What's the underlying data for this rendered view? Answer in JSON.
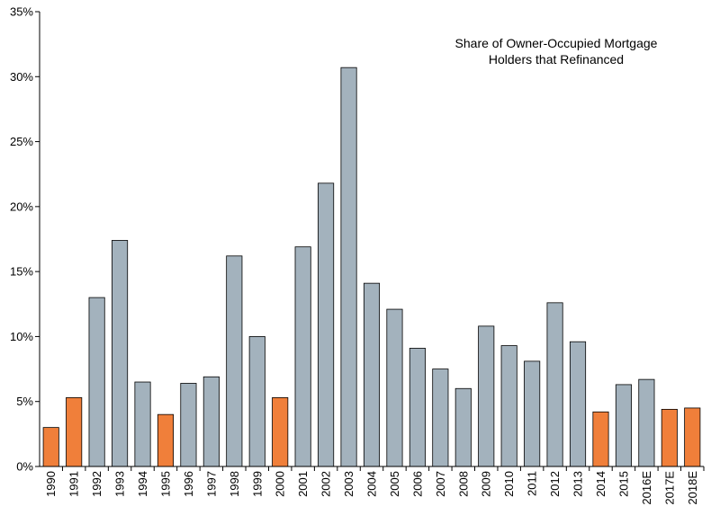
{
  "chart_data": {
    "type": "bar",
    "title_lines": [
      "Share of Owner-Occupied Mortgage",
      "Holders that Refinanced"
    ],
    "xlabel": "",
    "ylabel": "",
    "ylim": [
      0,
      35
    ],
    "y_ticks": [
      0,
      5,
      10,
      15,
      20,
      25,
      30,
      35
    ],
    "y_tick_labels": [
      "0%",
      "5%",
      "10%",
      "15%",
      "20%",
      "25%",
      "30%",
      "35%"
    ],
    "grid": false,
    "categories": [
      "1990",
      "1991",
      "1992",
      "1993",
      "1994",
      "1995",
      "1996",
      "1997",
      "1998",
      "1999",
      "2000",
      "2001",
      "2002",
      "2003",
      "2004",
      "2005",
      "2006",
      "2007",
      "2008",
      "2009",
      "2010",
      "2011",
      "2012",
      "2013",
      "2014",
      "2015",
      "2016E",
      "2017E",
      "2018E"
    ],
    "values": [
      3.0,
      5.3,
      13.0,
      17.4,
      6.5,
      4.0,
      6.4,
      6.9,
      16.2,
      10.0,
      5.3,
      16.9,
      21.8,
      30.7,
      14.1,
      12.1,
      9.1,
      7.5,
      6.0,
      10.8,
      9.3,
      8.1,
      12.6,
      9.6,
      4.2,
      6.3,
      6.7,
      4.4,
      4.5
    ],
    "highlighted": [
      true,
      true,
      false,
      false,
      false,
      true,
      false,
      false,
      false,
      false,
      true,
      false,
      false,
      false,
      false,
      false,
      false,
      false,
      false,
      false,
      false,
      false,
      false,
      false,
      true,
      false,
      false,
      true,
      true
    ],
    "colors": {
      "default_bar": "#a3b2bd",
      "highlight_bar": "#f07f3a",
      "bar_outline": "#000000",
      "axis": "#000000"
    }
  }
}
